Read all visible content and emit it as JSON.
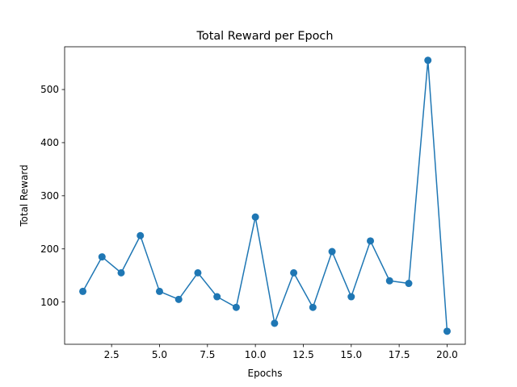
{
  "chart_data": {
    "type": "line",
    "title": "Total Reward per Epoch",
    "xlabel": "Epochs",
    "ylabel": "Total Reward",
    "xlim": [
      0.05,
      20.95
    ],
    "ylim": [
      20.5,
      580.5
    ],
    "x_ticks": [
      2.5,
      5.0,
      7.5,
      10.0,
      12.5,
      15.0,
      17.5,
      20.0
    ],
    "x_tick_labels": [
      "2.5",
      "5.0",
      "7.5",
      "10.0",
      "12.5",
      "15.0",
      "17.5",
      "20.0"
    ],
    "y_ticks": [
      100,
      200,
      300,
      400,
      500
    ],
    "y_tick_labels": [
      "100",
      "200",
      "300",
      "400",
      "500"
    ],
    "grid": false,
    "series": [
      {
        "color": "#1f77b4",
        "marker": "circle",
        "x": [
          1,
          2,
          3,
          4,
          5,
          6,
          7,
          8,
          9,
          10,
          11,
          12,
          13,
          14,
          15,
          16,
          17,
          18,
          19,
          20
        ],
        "y": [
          120,
          185,
          155,
          225,
          120,
          105,
          155,
          110,
          90,
          260,
          60,
          155,
          90,
          195,
          110,
          215,
          140,
          135,
          555,
          45
        ]
      }
    ]
  }
}
